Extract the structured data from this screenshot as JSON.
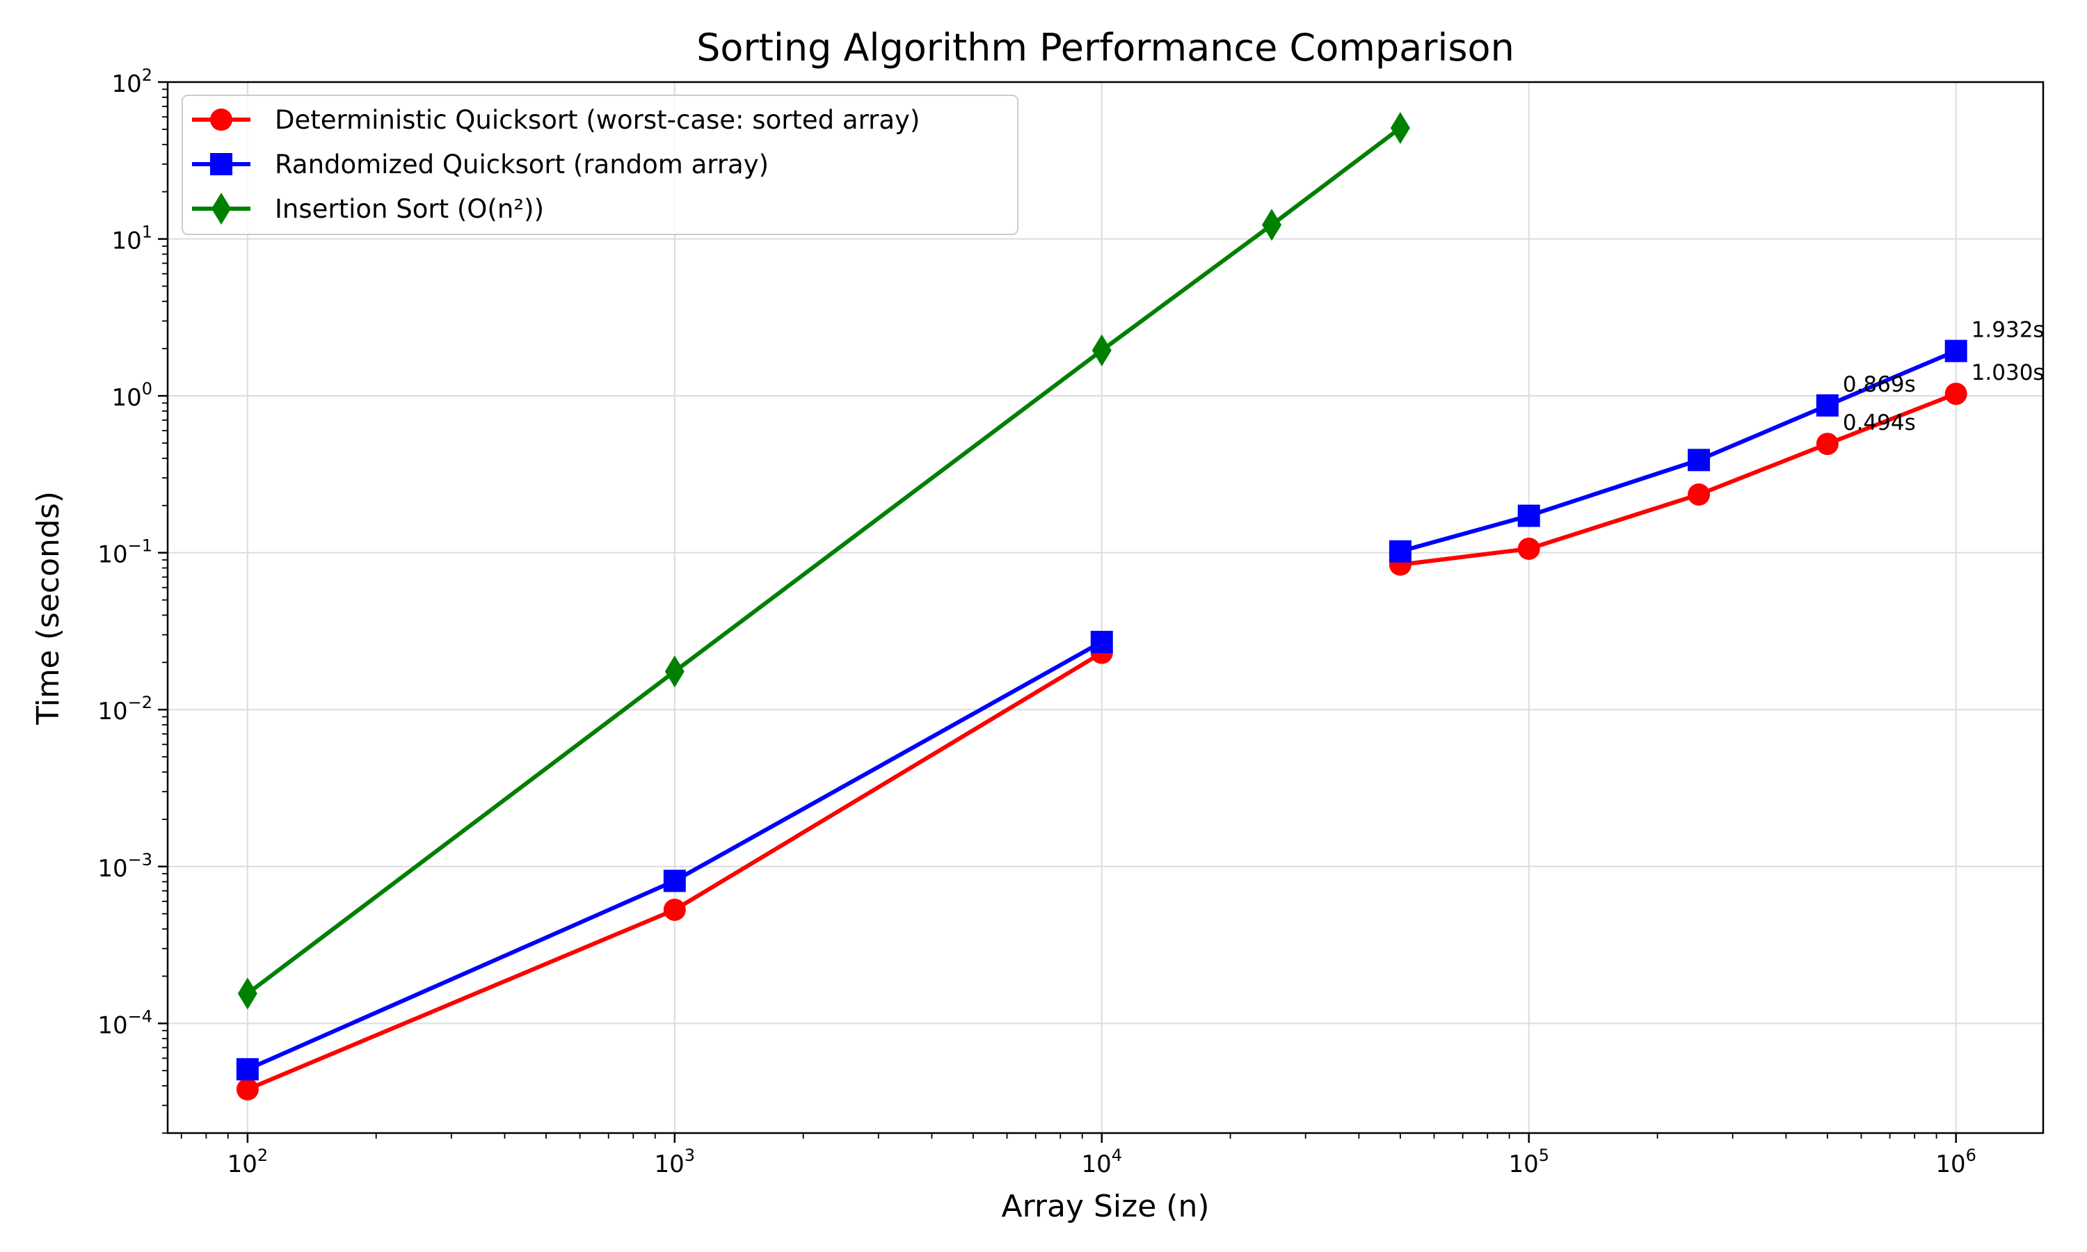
{
  "chart_data": {
    "type": "line",
    "title": "Sorting Algorithm Performance Comparison",
    "xlabel": "Array Size (n)",
    "ylabel": "Time (seconds)",
    "xscale": "log",
    "yscale": "log",
    "xlim": [
      65,
      1600000
    ],
    "ylim": [
      2e-05,
      100
    ],
    "grid": true,
    "legend_position": "top-left",
    "x_ticks": [
      {
        "base": "10",
        "exp": "2"
      },
      {
        "base": "10",
        "exp": "3"
      },
      {
        "base": "10",
        "exp": "4"
      },
      {
        "base": "10",
        "exp": "5"
      },
      {
        "base": "10",
        "exp": "6"
      }
    ],
    "y_ticks": [
      {
        "base": "10",
        "exp": "−4"
      },
      {
        "base": "10",
        "exp": "−3"
      },
      {
        "base": "10",
        "exp": "−2"
      },
      {
        "base": "10",
        "exp": "−1"
      },
      {
        "base": "10",
        "exp": "0"
      },
      {
        "base": "10",
        "exp": "1"
      },
      {
        "base": "10",
        "exp": "2"
      }
    ],
    "series": [
      {
        "name": "Deterministic Quicksort (worst-case: sorted array)",
        "color": "#ff0000",
        "marker": "circle",
        "segments": [
          {
            "x": [
              100,
              1000,
              10000
            ],
            "y": [
              3.8e-05,
              0.00053,
              0.023
            ]
          },
          {
            "x": [
              50000,
              100000,
              250000,
              500000,
              1000000
            ],
            "y": [
              0.084,
              0.106,
              0.235,
              0.494,
              1.03
            ]
          }
        ]
      },
      {
        "name": "Randomized Quicksort (random array)",
        "color": "#0000ff",
        "marker": "square",
        "segments": [
          {
            "x": [
              100,
              1000,
              10000
            ],
            "y": [
              5.1e-05,
              0.00081,
              0.027
            ]
          },
          {
            "x": [
              50000,
              100000,
              250000,
              500000,
              1000000
            ],
            "y": [
              0.102,
              0.172,
              0.39,
              0.869,
              1.932
            ]
          }
        ]
      },
      {
        "name": "Insertion Sort (O(n²))",
        "color": "#008000",
        "marker": "diamond",
        "segments": [
          {
            "x": [
              100,
              1000,
              10000,
              25000,
              50000
            ],
            "y": [
              0.000155,
              0.0175,
              1.95,
              12.3,
              51
            ]
          }
        ]
      }
    ],
    "annotations": [
      {
        "text": "1.932s",
        "x": 1000000,
        "y": 1.932,
        "series": 1
      },
      {
        "text": "1.030s",
        "x": 1000000,
        "y": 1.03,
        "series": 0
      },
      {
        "text": "0.869s",
        "x": 500000,
        "y": 0.869,
        "series": 1
      },
      {
        "text": "0.494s",
        "x": 500000,
        "y": 0.494,
        "series": 0
      }
    ]
  }
}
